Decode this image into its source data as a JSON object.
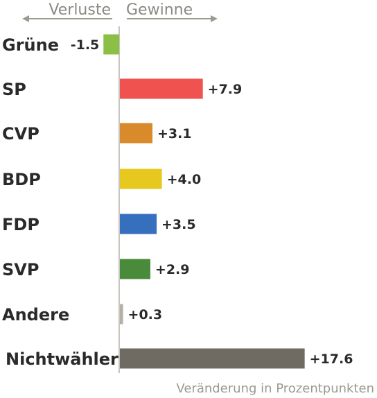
{
  "chart_data": {
    "type": "bar",
    "orientation": "horizontal",
    "categories": [
      "Grüne",
      "SP",
      "CVP",
      "BDP",
      "FDP",
      "SVP",
      "Andere",
      "Nichtwähler"
    ],
    "values": [
      -1.5,
      7.9,
      3.1,
      4.0,
      3.5,
      2.9,
      0.3,
      17.6
    ],
    "value_labels": [
      "-1.5",
      "+7.9",
      "+3.1",
      "+4.0",
      "+3.5",
      "+2.9",
      "+0.3",
      "+17.6"
    ],
    "colors": [
      "#8bbf45",
      "#f0524f",
      "#d98a2b",
      "#e6c81f",
      "#356fbe",
      "#4a8b3b",
      "#b4b0a6",
      "#6f6b62"
    ],
    "xlabel": "Veränderung in Prozentpunkten",
    "legend": {
      "negative": "Verluste",
      "positive": "Gewinne"
    },
    "grid": false
  }
}
